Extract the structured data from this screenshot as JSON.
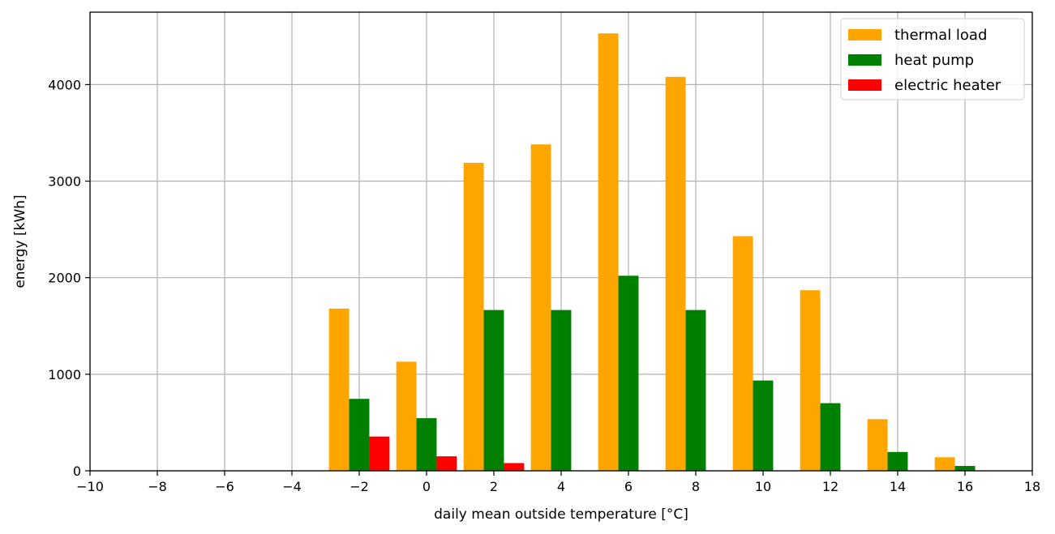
{
  "chart_data": {
    "type": "bar",
    "title": "",
    "xlabel": "daily mean outside temperature [°C]",
    "ylabel": "energy [kWh]",
    "xlim": [
      -10,
      18
    ],
    "ylim": [
      0,
      4750
    ],
    "xticks": [
      "−10",
      "−8",
      "−6",
      "−4",
      "−2",
      "0",
      "2",
      "4",
      "6",
      "8",
      "10",
      "12",
      "14",
      "16",
      "18"
    ],
    "xtick_values": [
      -10,
      -8,
      -6,
      -4,
      -2,
      0,
      2,
      4,
      6,
      8,
      10,
      12,
      14,
      16,
      18
    ],
    "yticks": [
      "0",
      "1000",
      "2000",
      "3000",
      "4000"
    ],
    "ytick_values": [
      0,
      1000,
      2000,
      3000,
      4000
    ],
    "grid": true,
    "legend_position": "top-right",
    "categories": [
      -2,
      0,
      2,
      4,
      6,
      8,
      10,
      12,
      14,
      16
    ],
    "series": [
      {
        "name": "thermal load",
        "color": "#FFA500",
        "values": [
          1680,
          1130,
          3190,
          3380,
          4530,
          4080,
          2430,
          1870,
          535,
          140
        ]
      },
      {
        "name": "heat pump",
        "color": "#008000",
        "values": [
          745,
          545,
          1665,
          1665,
          2020,
          1665,
          935,
          700,
          195,
          50
        ]
      },
      {
        "name": "electric heater",
        "color": "#FF0000",
        "values": [
          355,
          150,
          80,
          0,
          0,
          0,
          0,
          0,
          0,
          0
        ]
      }
    ]
  }
}
